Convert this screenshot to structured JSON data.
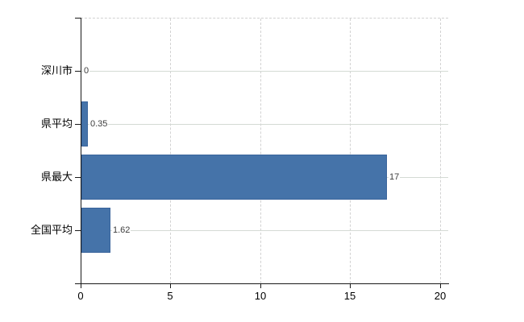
{
  "chart_data": {
    "type": "bar",
    "orientation": "horizontal",
    "title": "",
    "xlabel": "",
    "ylabel": "",
    "categories": [
      "深川市",
      "県平均",
      "県最大",
      "全国平均"
    ],
    "values": [
      0,
      0.35,
      17,
      1.62
    ],
    "value_labels": [
      "0",
      "0.35",
      "17",
      "1.62"
    ],
    "x_ticks": [
      "0",
      "5",
      "10",
      "15",
      "20"
    ],
    "xlim": [
      0,
      20
    ],
    "grid": true,
    "legend": false,
    "bar_color": "#4573a9",
    "bar_border_color": "#3a649c",
    "grid_color": "#d4d4d4",
    "axis_color": "#1a1a1a",
    "background_color": "#ffffff"
  }
}
